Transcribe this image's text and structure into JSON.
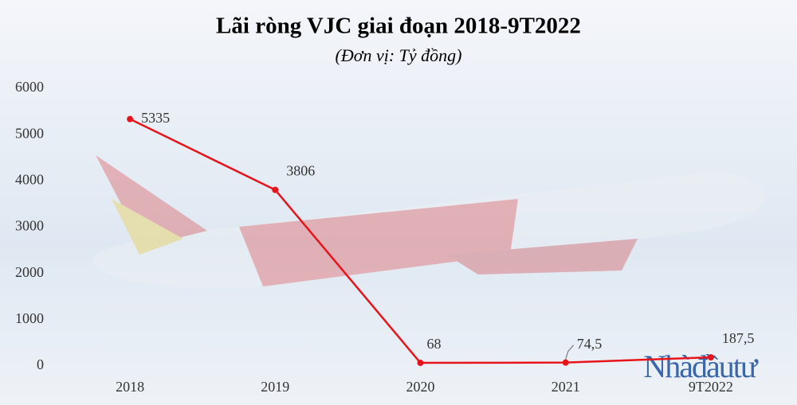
{
  "chart_data": {
    "type": "line",
    "title": "Lãi ròng VJC giai đoạn 2018-9T2022",
    "subtitle": "(Đơn vị: Tỷ đồng)",
    "categories": [
      "2018",
      "2019",
      "2020",
      "2021",
      "9T2022"
    ],
    "values": [
      5335,
      3806,
      68,
      74.5,
      187.5
    ],
    "value_labels": [
      "5335",
      "3806",
      "68",
      "74,5",
      "187,5"
    ],
    "color": "#e8141b",
    "ylim": [
      0,
      6000
    ],
    "yticks": [
      0,
      1000,
      2000,
      3000,
      4000,
      5000,
      6000
    ],
    "grid": false,
    "watermark": "Nhàđầutư"
  }
}
